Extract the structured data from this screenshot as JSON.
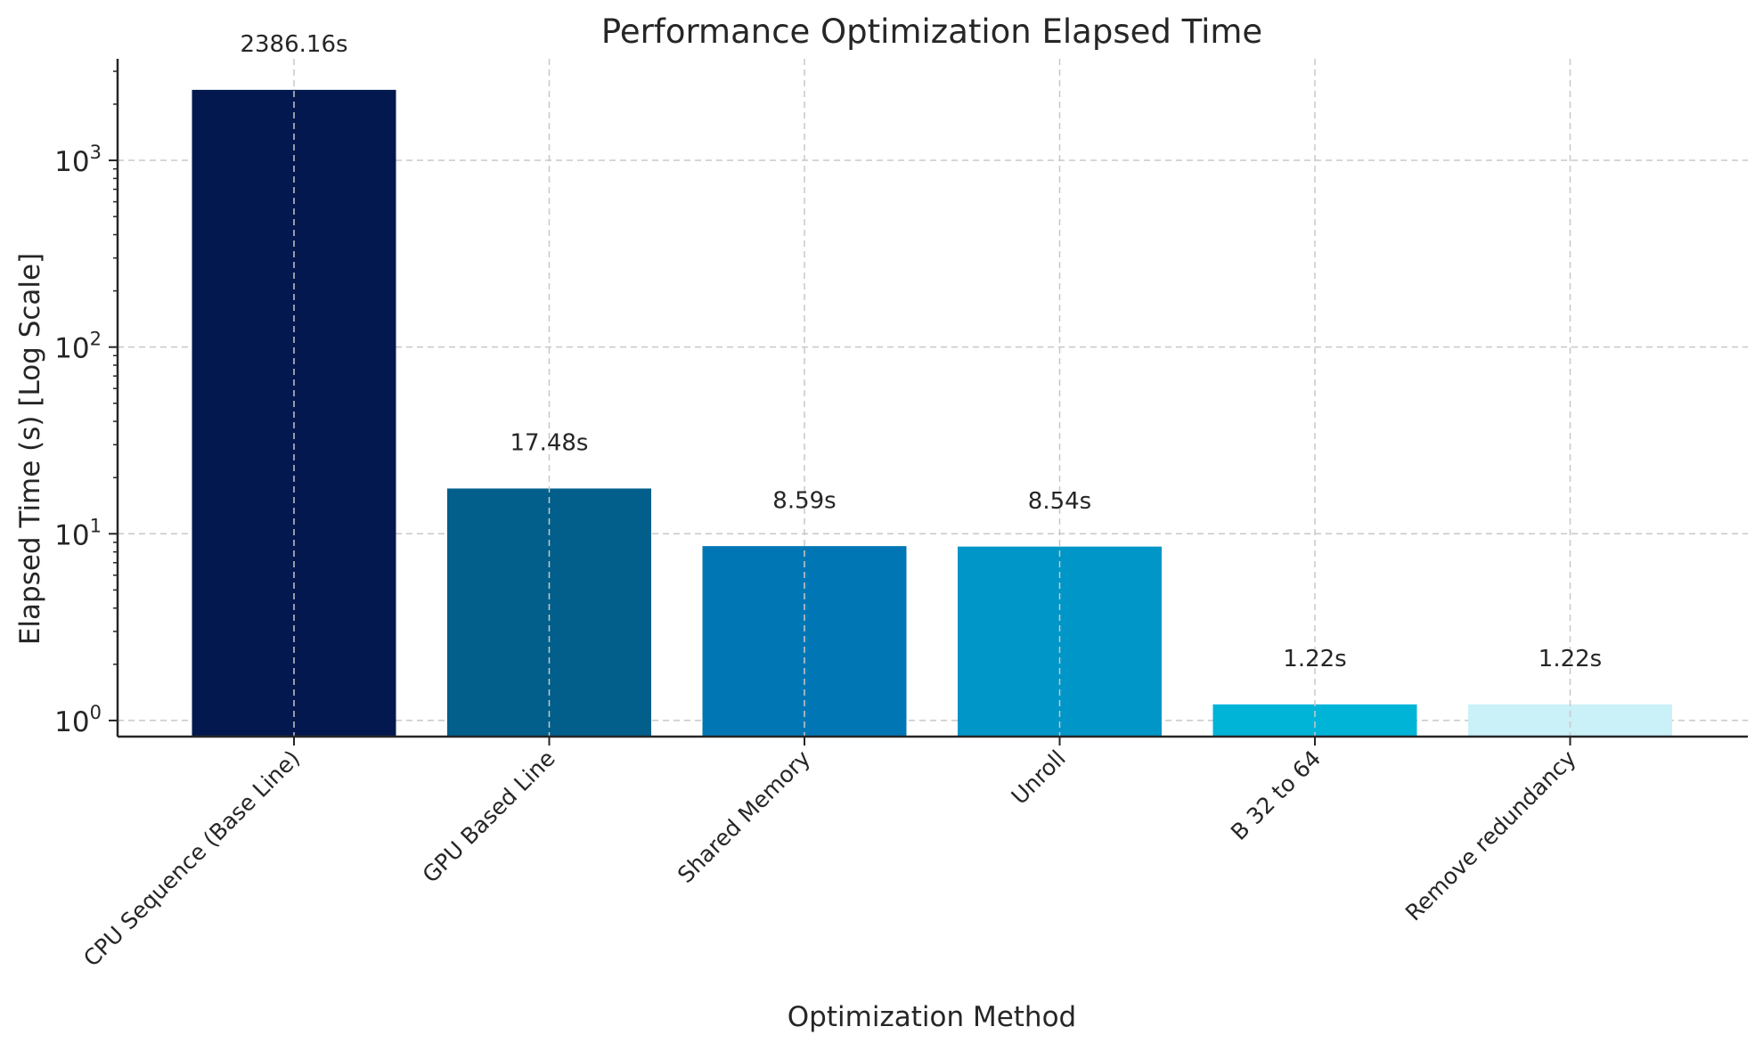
{
  "chart_data": {
    "type": "bar",
    "title": "Performance Optimization Elapsed Time",
    "xlabel": "Optimization Method",
    "ylabel": "Elapsed Time (s) [Log Scale]",
    "yscale": "log",
    "ylim": [
      0.82,
      3500
    ],
    "yticks": [
      {
        "value": 1,
        "base": "10",
        "exp": "0"
      },
      {
        "value": 10,
        "base": "10",
        "exp": "1"
      },
      {
        "value": 100,
        "base": "10",
        "exp": "2"
      },
      {
        "value": 1000,
        "base": "10",
        "exp": "3"
      }
    ],
    "grid": true,
    "categories": [
      "CPU Sequence (Base Line)",
      "GPU Based Line",
      "Shared Memory",
      "Unroll",
      "B 32 to 64",
      "Remove redundancy"
    ],
    "values": [
      2386.16,
      17.48,
      8.59,
      8.54,
      1.22,
      1.22
    ],
    "data_labels": [
      "2386.16s",
      "17.48s",
      "8.59s",
      "8.54s",
      "1.22s",
      "1.22s"
    ],
    "colors": [
      "#03184f",
      "#025f8b",
      "#0077b4",
      "#0096c7",
      "#00b4d8",
      "#caf0f8"
    ]
  }
}
